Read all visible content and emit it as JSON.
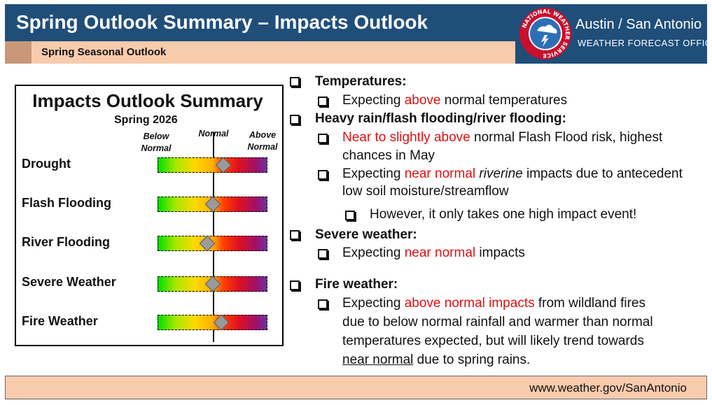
{
  "header": {
    "title": "Spring Outlook Summary – Impacts Outlook",
    "subtitle": "Spring Seasonal Outlook"
  },
  "office": {
    "name": "Austin / San Antonio",
    "sub": "WEATHER FORECAST OFFICE",
    "logo_ring_text": "NATIONAL WEATHER SERVICE",
    "logo_icon": "nws-logo-icon"
  },
  "colors": {
    "header_bg": "#1f4e79",
    "accent_bg": "#f8cbad",
    "highlight_red": "#e01010"
  },
  "summary": {
    "title": "Impacts Outlook Summary",
    "season": "Spring 2026",
    "col_below": "Below Normal",
    "col_normal": "Normal",
    "col_above": "Above Normal",
    "rows": [
      {
        "label": "Drought",
        "level": 0.6
      },
      {
        "label": "Flash Flooding",
        "level": 0.5
      },
      {
        "label": "River Flooding",
        "level": 0.45
      },
      {
        "label": "Severe Weather",
        "level": 0.5
      },
      {
        "label": "Fire Weather",
        "level": 0.58
      }
    ]
  },
  "bullets": {
    "temp_head": "Temperatures:",
    "temp_1a": "Expecting ",
    "temp_1b": "above",
    "temp_1c": " normal temperatures",
    "rain_head": "Heavy rain/flash flooding/river flooding:",
    "rain_1a": "Near to slightly above",
    "rain_1b": " normal Flash Flood risk, highest",
    "rain_1c": "chances in May",
    "rain_2a": "Expecting ",
    "rain_2b": "near normal",
    "rain_2c": " ",
    "rain_2d": "riverine",
    "rain_2e": " impacts due to antecedent",
    "rain_2f": "low soil moisture/streamflow",
    "rain_3": "However, it only takes one high impact event!",
    "severe_head": "Severe weather:",
    "severe_1a": "Expecting ",
    "severe_1b": "near normal",
    "severe_1c": " impacts",
    "fire_head": "Fire weather:",
    "fire_1a": "Expecting ",
    "fire_1b": "above normal impacts",
    "fire_1c": " from wildland fires",
    "fire_1d": "due to below normal rainfall and warmer than normal",
    "fire_1e": "temperatures expected, but will likely trend towards",
    "fire_1f": "near normal",
    "fire_1g": " due to spring rains."
  },
  "footer": {
    "url": "www.weather.gov/SanAntonio"
  }
}
